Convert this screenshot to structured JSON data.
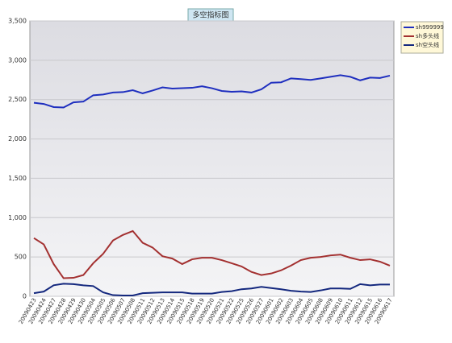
{
  "chart_data": {
    "type": "line",
    "title": "多空指标图",
    "categories": [
      "20090423",
      "20090424",
      "20090427",
      "20090428",
      "20090429",
      "20090430",
      "20090504",
      "20090505",
      "20090506",
      "20090507",
      "20090508",
      "20090511",
      "20090512",
      "20090513",
      "20090514",
      "20090515",
      "20090518",
      "20090519",
      "20090520",
      "20090521",
      "20090522",
      "20090525",
      "20090526",
      "20090527",
      "20090601",
      "20090602",
      "20090603",
      "20090604",
      "20090605",
      "20090608",
      "20090609",
      "20090610",
      "20090611",
      "20090612",
      "20090615",
      "20090616",
      "20090617"
    ],
    "series": [
      {
        "name": "sh999999",
        "color": "#1f2fbf",
        "values": [
          2460,
          2445,
          2405,
          2400,
          2465,
          2475,
          2555,
          2565,
          2590,
          2595,
          2620,
          2580,
          2615,
          2655,
          2640,
          2645,
          2650,
          2670,
          2645,
          2610,
          2600,
          2605,
          2590,
          2630,
          2715,
          2720,
          2770,
          2760,
          2750,
          2770,
          2790,
          2810,
          2790,
          2745,
          2780,
          2775,
          2805
        ]
      },
      {
        "name": "sh多头线",
        "color": "#a33030",
        "values": [
          740,
          660,
          410,
          230,
          235,
          270,
          420,
          540,
          710,
          780,
          830,
          680,
          620,
          510,
          480,
          410,
          470,
          490,
          490,
          460,
          420,
          380,
          310,
          270,
          290,
          330,
          390,
          460,
          490,
          500,
          520,
          530,
          490,
          460,
          470,
          440,
          390
        ]
      },
      {
        "name": "sh空头线",
        "color": "#14287e",
        "values": [
          40,
          60,
          140,
          160,
          155,
          140,
          130,
          50,
          15,
          10,
          10,
          40,
          45,
          50,
          50,
          50,
          35,
          35,
          35,
          55,
          65,
          90,
          100,
          120,
          105,
          90,
          70,
          60,
          55,
          75,
          100,
          100,
          95,
          155,
          140,
          150,
          150
        ]
      }
    ],
    "ylim": [
      0,
      3500
    ],
    "yticks": [
      0,
      500,
      {
        "value": 1000,
        "label": "1,000"
      },
      {
        "value": 1500,
        "label": "1,500"
      },
      {
        "value": 2000,
        "label": "2,000"
      },
      {
        "value": 2500,
        "label": "2,500"
      },
      {
        "value": 3000,
        "label": "3,000"
      },
      {
        "value": 3500,
        "label": "3,500"
      }
    ],
    "grid": true,
    "legend": "top-right"
  }
}
